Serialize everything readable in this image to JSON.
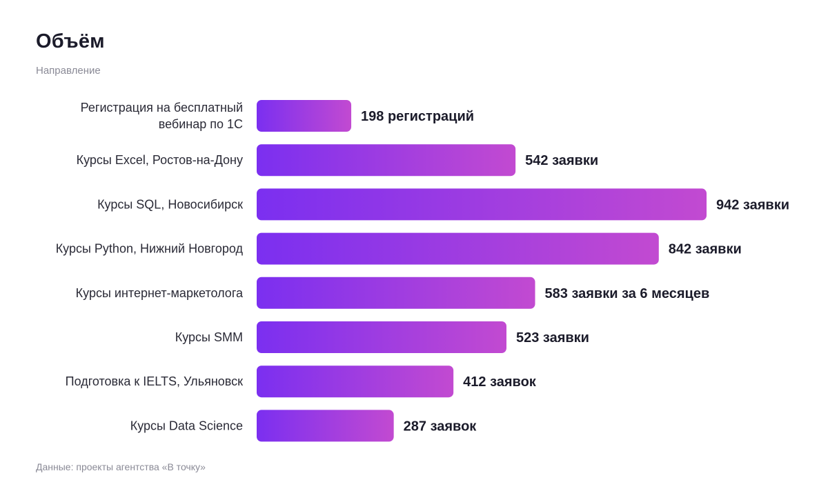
{
  "header": {
    "title": "Объём",
    "subtitle": "Направление"
  },
  "footer": {
    "source": "Данные: проекты агентства «В точку»"
  },
  "colors": {
    "bar_gradient_start": "#7b2ff0",
    "bar_gradient_end": "#c24ad1"
  },
  "chart_data": {
    "type": "bar",
    "orientation": "horizontal",
    "title": "Объём",
    "subtitle": "Направление",
    "categories": [
      "Регистрация на бесплатный вебинар по 1С",
      "Курсы Excel, Ростов-на-Дону",
      "Курсы SQL, Новосибирск",
      "Курсы Python, Нижний Новгород",
      "Курсы интернет-маркетолога",
      "Курсы SMM",
      "Подготовка к IELTS, Ульяновск",
      "Курсы Data Science"
    ],
    "category_lines": [
      [
        "Регистрация на бесплатный",
        "вебинар по 1С"
      ],
      [
        "Курсы Excel, Ростов-на-Дону"
      ],
      [
        "Курсы SQL, Новосибирск"
      ],
      [
        "Курсы Python, Нижний Новгород"
      ],
      [
        "Курсы интернет-маркетолога"
      ],
      [
        "Курсы SMM"
      ],
      [
        "Подготовка к IELTS, Ульяновск"
      ],
      [
        "Курсы Data Science"
      ]
    ],
    "values": [
      198,
      542,
      942,
      842,
      583,
      523,
      412,
      287
    ],
    "value_labels": [
      "198 регистраций",
      "542 заявки",
      "942 заявки",
      "842 заявки",
      "583 заявки за 6 месяцев",
      "523 заявки",
      "412 заявок",
      "287 заявок"
    ],
    "xlim": [
      0,
      942
    ],
    "grid": false,
    "legend": "none"
  }
}
